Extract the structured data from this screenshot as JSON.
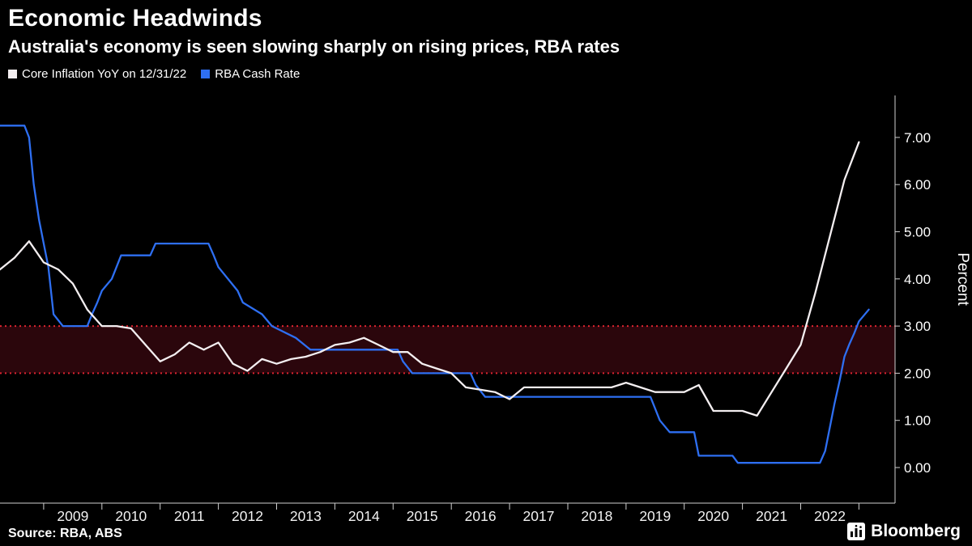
{
  "header": {
    "title": "Economic Headwinds",
    "subtitle": "Australia's economy is seen slowing sharply on rising prices, RBA rates"
  },
  "legend": [
    {
      "label": "Core Inflation YoY on 12/31/22",
      "color": "#f3eef0"
    },
    {
      "label": "RBA Cash Rate",
      "color": "#2e6ff2"
    }
  ],
  "footer": {
    "source": "Source: RBA, ABS",
    "brand": "Bloomberg"
  },
  "chart_data": {
    "type": "line",
    "title": "Economic Headwinds",
    "subtitle": "Australia's economy is seen slowing sharply on rising prices, RBA rates",
    "xlabel": "",
    "ylabel": "Percent",
    "xlim": [
      2008.25,
      2023.62
    ],
    "ylim": [
      0,
      7.25
    ],
    "y_ticks": [
      0,
      1,
      2,
      3,
      4,
      5,
      6,
      7
    ],
    "y_tick_format": "0.00",
    "x_tick_years": [
      2009,
      2010,
      2011,
      2012,
      2013,
      2014,
      2015,
      2016,
      2017,
      2018,
      2019,
      2020,
      2021,
      2022
    ],
    "grid": false,
    "legend_position": "top-left",
    "axis_color": "#cfcfcf",
    "band": {
      "from": 2.0,
      "to": 3.0,
      "fill": "#2b060c",
      "line_color": "#dd2430",
      "line_style": "dotted",
      "meaning": "RBA 2-3% inflation target band"
    },
    "series": [
      {
        "name": "RBA Cash Rate",
        "color": "#2e6ff2",
        "points": [
          [
            2008.25,
            7.25
          ],
          [
            2008.67,
            7.25
          ],
          [
            2008.75,
            7.0
          ],
          [
            2008.83,
            6.0
          ],
          [
            2008.92,
            5.25
          ],
          [
            2009.08,
            4.25
          ],
          [
            2009.17,
            3.25
          ],
          [
            2009.33,
            3.0
          ],
          [
            2009.75,
            3.0
          ],
          [
            2009.83,
            3.25
          ],
          [
            2009.92,
            3.5
          ],
          [
            2010.0,
            3.75
          ],
          [
            2010.17,
            4.0
          ],
          [
            2010.25,
            4.25
          ],
          [
            2010.33,
            4.5
          ],
          [
            2010.83,
            4.5
          ],
          [
            2010.92,
            4.75
          ],
          [
            2011.83,
            4.75
          ],
          [
            2011.92,
            4.5
          ],
          [
            2012.0,
            4.25
          ],
          [
            2012.33,
            3.75
          ],
          [
            2012.42,
            3.5
          ],
          [
            2012.75,
            3.25
          ],
          [
            2012.92,
            3.0
          ],
          [
            2013.33,
            2.75
          ],
          [
            2013.58,
            2.5
          ],
          [
            2015.08,
            2.5
          ],
          [
            2015.17,
            2.25
          ],
          [
            2015.33,
            2.0
          ],
          [
            2016.33,
            2.0
          ],
          [
            2016.42,
            1.75
          ],
          [
            2016.58,
            1.5
          ],
          [
            2019.42,
            1.5
          ],
          [
            2019.5,
            1.25
          ],
          [
            2019.58,
            1.0
          ],
          [
            2019.75,
            0.75
          ],
          [
            2020.17,
            0.75
          ],
          [
            2020.25,
            0.25
          ],
          [
            2020.83,
            0.25
          ],
          [
            2020.92,
            0.1
          ],
          [
            2022.33,
            0.1
          ],
          [
            2022.42,
            0.35
          ],
          [
            2022.5,
            0.85
          ],
          [
            2022.58,
            1.35
          ],
          [
            2022.67,
            1.85
          ],
          [
            2022.75,
            2.35
          ],
          [
            2022.83,
            2.6
          ],
          [
            2022.92,
            2.85
          ],
          [
            2023.0,
            3.1
          ],
          [
            2023.17,
            3.35
          ]
        ]
      },
      {
        "name": "Core Inflation YoY on 12/31/22",
        "color": "#f3eef0",
        "points": [
          [
            2008.25,
            4.2
          ],
          [
            2008.5,
            4.45
          ],
          [
            2008.75,
            4.8
          ],
          [
            2009.0,
            4.35
          ],
          [
            2009.25,
            4.2
          ],
          [
            2009.5,
            3.9
          ],
          [
            2009.75,
            3.35
          ],
          [
            2010.0,
            3.0
          ],
          [
            2010.25,
            3.0
          ],
          [
            2010.5,
            2.95
          ],
          [
            2010.75,
            2.6
          ],
          [
            2011.0,
            2.25
          ],
          [
            2011.25,
            2.4
          ],
          [
            2011.5,
            2.65
          ],
          [
            2011.75,
            2.5
          ],
          [
            2012.0,
            2.65
          ],
          [
            2012.25,
            2.2
          ],
          [
            2012.5,
            2.05
          ],
          [
            2012.75,
            2.3
          ],
          [
            2013.0,
            2.2
          ],
          [
            2013.25,
            2.3
          ],
          [
            2013.5,
            2.35
          ],
          [
            2013.75,
            2.45
          ],
          [
            2014.0,
            2.6
          ],
          [
            2014.25,
            2.65
          ],
          [
            2014.5,
            2.75
          ],
          [
            2014.75,
            2.6
          ],
          [
            2015.0,
            2.45
          ],
          [
            2015.25,
            2.45
          ],
          [
            2015.5,
            2.2
          ],
          [
            2015.75,
            2.1
          ],
          [
            2016.0,
            2.0
          ],
          [
            2016.25,
            1.7
          ],
          [
            2016.5,
            1.65
          ],
          [
            2016.75,
            1.6
          ],
          [
            2017.0,
            1.45
          ],
          [
            2017.25,
            1.7
          ],
          [
            2017.5,
            1.7
          ],
          [
            2017.75,
            1.7
          ],
          [
            2018.0,
            1.7
          ],
          [
            2018.25,
            1.7
          ],
          [
            2018.5,
            1.7
          ],
          [
            2018.75,
            1.7
          ],
          [
            2019.0,
            1.8
          ],
          [
            2019.25,
            1.7
          ],
          [
            2019.5,
            1.6
          ],
          [
            2019.75,
            1.6
          ],
          [
            2020.0,
            1.6
          ],
          [
            2020.25,
            1.75
          ],
          [
            2020.5,
            1.2
          ],
          [
            2020.75,
            1.2
          ],
          [
            2021.0,
            1.2
          ],
          [
            2021.25,
            1.1
          ],
          [
            2021.5,
            1.6
          ],
          [
            2021.75,
            2.1
          ],
          [
            2022.0,
            2.6
          ],
          [
            2022.25,
            3.7
          ],
          [
            2022.5,
            4.9
          ],
          [
            2022.75,
            6.1
          ],
          [
            2023.0,
            6.9
          ]
        ]
      }
    ]
  }
}
